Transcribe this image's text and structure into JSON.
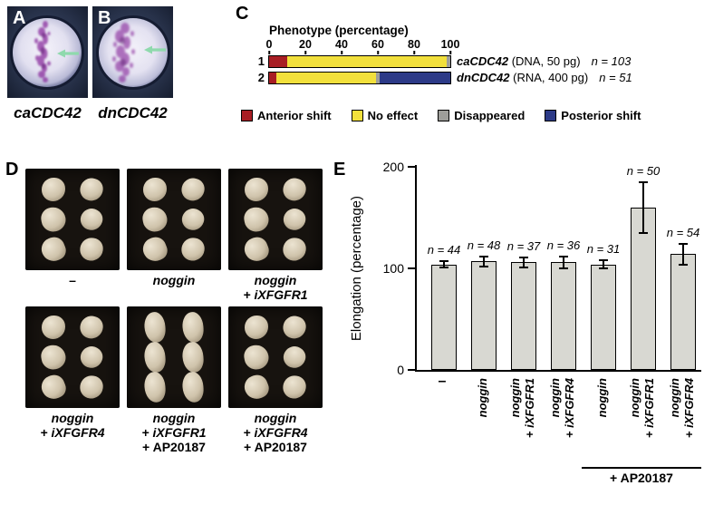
{
  "panels": {
    "A": {
      "letter": "A",
      "caption": "caCDC42"
    },
    "B": {
      "letter": "B",
      "caption": "dnCDC42"
    },
    "C": {
      "letter": "C"
    },
    "D": {
      "letter": "D"
    },
    "E": {
      "letter": "E"
    }
  },
  "chart_data": [
    {
      "id": "phenotype",
      "type": "bar",
      "subtype": "horizontal-stacked",
      "title": "Phenotype (percentage)",
      "x_ticks": [
        0,
        20,
        40,
        60,
        80,
        100
      ],
      "xlim": [
        0,
        100
      ],
      "rows": [
        {
          "row_label": "1",
          "gene": "caCDC42",
          "detail": "(DNA, 50 pg)",
          "n": "n = 103",
          "segments": {
            "anterior_shift": 10,
            "no_effect": 88,
            "disappeared": 2,
            "posterior_shift": 0
          }
        },
        {
          "row_label": "2",
          "gene": "dnCDC42",
          "detail": "(RNA, 400 pg)",
          "n": "n = 51",
          "segments": {
            "anterior_shift": 4,
            "no_effect": 55,
            "disappeared": 2,
            "posterior_shift": 39
          }
        }
      ],
      "legend": [
        {
          "key": "anterior_shift",
          "label": "Anterior shift",
          "color": "#a81e24"
        },
        {
          "key": "no_effect",
          "label": "No effect",
          "color": "#f2e03c"
        },
        {
          "key": "disappeared",
          "label": "Disappeared",
          "color": "#9e9e9a"
        },
        {
          "key": "posterior_shift",
          "label": "Posterior shift",
          "color": "#2c3a87"
        }
      ]
    },
    {
      "id": "elongation",
      "type": "bar",
      "ylabel": "Elongation (percentage)",
      "y_ticks": [
        0,
        100,
        200
      ],
      "ylim": [
        0,
        210
      ],
      "bar_color": "#d8d8d2",
      "bars": [
        {
          "label_lines": [
            "–"
          ],
          "italic": false,
          "rotate": false,
          "value": 104,
          "err": 3,
          "n": "n = 44"
        },
        {
          "label_lines": [
            "noggin"
          ],
          "italic": true,
          "value": 107,
          "err": 5,
          "n": "n = 48"
        },
        {
          "label_lines": [
            "noggin",
            "+ iXFGFR1"
          ],
          "italic": true,
          "value": 106,
          "err": 5,
          "n": "n = 37"
        },
        {
          "label_lines": [
            "noggin",
            "+ iXFGFR4"
          ],
          "italic": true,
          "value": 106,
          "err": 6,
          "n": "n = 36"
        },
        {
          "label_lines": [
            "noggin"
          ],
          "italic": true,
          "value": 104,
          "err": 4,
          "n": "n = 31"
        },
        {
          "label_lines": [
            "noggin",
            "+ iXFGFR1"
          ],
          "italic": true,
          "value": 160,
          "err": 25,
          "n": "n = 50"
        },
        {
          "label_lines": [
            "noggin",
            "+ iXFGFR4"
          ],
          "italic": true,
          "value": 114,
          "err": 10,
          "n": "n = 54"
        }
      ],
      "group_bracket": {
        "label": "+ AP20187",
        "from_bar": 4,
        "to_bar": 6
      }
    }
  ],
  "explants": {
    "items": [
      {
        "lines": [
          {
            "text": "–",
            "italic": false
          }
        ],
        "elongated": false
      },
      {
        "lines": [
          {
            "text": "noggin",
            "italic": true
          }
        ],
        "elongated": false
      },
      {
        "lines": [
          {
            "text": "noggin",
            "italic": true
          },
          {
            "text": "+ iXFGFR1",
            "italic": true
          }
        ],
        "elongated": false
      },
      {
        "lines": [
          {
            "text": "noggin",
            "italic": true
          },
          {
            "text": "+ iXFGFR4",
            "italic": true
          }
        ],
        "elongated": false
      },
      {
        "lines": [
          {
            "text": "noggin",
            "italic": true
          },
          {
            "text": "+ iXFGFR1",
            "italic": true
          },
          {
            "text": "+ AP20187",
            "italic": false
          }
        ],
        "elongated": true
      },
      {
        "lines": [
          {
            "text": "noggin",
            "italic": true
          },
          {
            "text": "+ iXFGFR4",
            "italic": true
          },
          {
            "text": "+ AP20187",
            "italic": false
          }
        ],
        "elongated": false
      }
    ]
  }
}
